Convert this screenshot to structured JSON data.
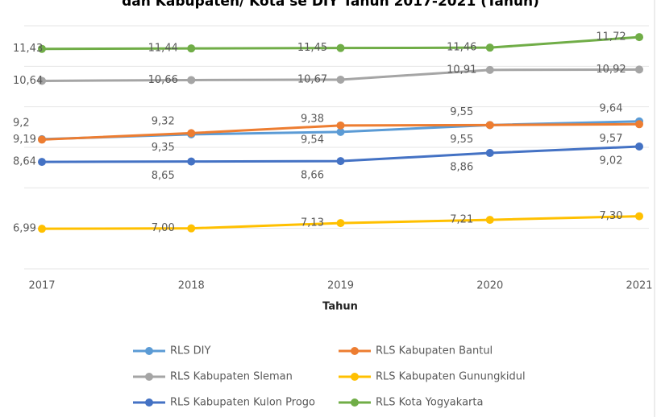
{
  "chart_data": {
    "type": "line",
    "title": "dan Kabupaten/ Kota se DIY Tahun 2017-2021 (Tahun)",
    "x_label": "Tahun",
    "categories": [
      "2017",
      "2018",
      "2019",
      "2020",
      "2021"
    ],
    "ylim": [
      6,
      12
    ],
    "yticks": [
      6,
      7,
      8,
      9,
      10,
      11,
      12
    ],
    "grid": true,
    "series": [
      {
        "name": "RLS DIY",
        "color": "#5b9bd5",
        "values": [
          9.2,
          9.32,
          9.38,
          9.55,
          9.64
        ],
        "value_labels": [
          "9,2",
          "9,32",
          "9,38",
          "9,55",
          "9,64"
        ]
      },
      {
        "name": "RLS Kabupaten Bantul",
        "color": "#ed7d31",
        "values": [
          9.19,
          9.35,
          9.54,
          9.55,
          9.57
        ],
        "value_labels": [
          "9,19",
          "9,35",
          "9,54",
          "9,55",
          "9,57"
        ]
      },
      {
        "name": "RLS Kabupaten Sleman",
        "color": "#a5a5a5",
        "values": [
          10.64,
          10.66,
          10.67,
          10.91,
          10.92
        ],
        "value_labels": [
          "10,64",
          "10,66",
          "10,67",
          "10,91",
          "10,92"
        ]
      },
      {
        "name": "RLS Kabupaten Gunungkidul",
        "color": "#ffc000",
        "values": [
          6.99,
          7.0,
          7.13,
          7.21,
          7.3
        ],
        "value_labels": [
          "6,99",
          "7,00",
          "7,13",
          "7,21",
          "7,30"
        ]
      },
      {
        "name": "RLS Kabupaten Kulon Progo",
        "color": "#4472c4",
        "values": [
          8.64,
          8.65,
          8.66,
          8.86,
          9.02
        ],
        "value_labels": [
          "8,64",
          "8,65",
          "8,66",
          "8,86",
          "9,02"
        ]
      },
      {
        "name": "RLS Kota Yogyakarta",
        "color": "#70ad47",
        "values": [
          11.43,
          11.44,
          11.45,
          11.46,
          11.72
        ],
        "value_labels": [
          "11,43",
          "11,44",
          "11,45",
          "11,46",
          "11,72"
        ]
      }
    ]
  }
}
